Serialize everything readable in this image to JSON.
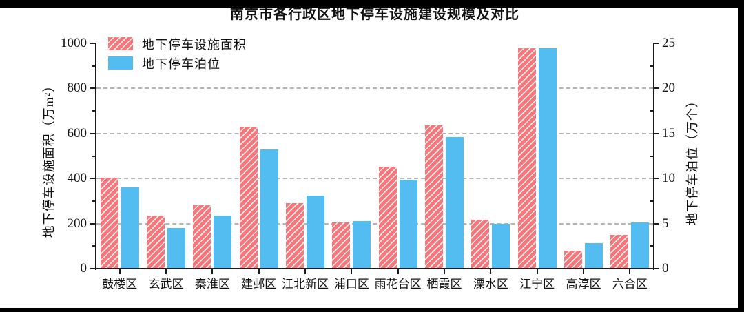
{
  "title": "南京市各行政区地下停车设施建设规模及对比",
  "legend": [
    {
      "label": "地下停车设施面积",
      "swatch": "red-hatched-patch"
    },
    {
      "label": "地下停车泊位",
      "swatch": "blue-patch"
    }
  ],
  "colors": {
    "area_bar": "#F5767B",
    "berth_bar": "#53BDF2",
    "grid": "#B4B4B4",
    "axis": "#1A1A1A",
    "letterbox": "#000000",
    "background": "#FFFFFF"
  },
  "chart_data": {
    "type": "bar",
    "title": "南京市各行政区地下停车设施建设规模及对比",
    "categories": [
      "鼓楼区",
      "玄武区",
      "秦淮区",
      "建邺区",
      "江北新区",
      "浦口区",
      "雨花台区",
      "栖霞区",
      "溧水区",
      "江宁区",
      "高淳区",
      "六合区"
    ],
    "series": [
      {
        "name": "地下停车设施面积",
        "axis": "left",
        "unit": "万m²",
        "color": "#F5767B",
        "hatch": "///",
        "values": [
          405,
          235,
          280,
          630,
          290,
          205,
          452,
          635,
          218,
          980,
          78,
          150
        ]
      },
      {
        "name": "地下停车泊位",
        "axis": "right",
        "unit": "万个",
        "color": "#53BDF2",
        "hatch": null,
        "values": [
          9.0,
          4.5,
          5.9,
          13.2,
          8.1,
          5.3,
          9.9,
          14.6,
          5.0,
          24.5,
          2.8,
          5.1
        ]
      }
    ],
    "left_axis": {
      "label": "地下停车设施面积（万m²）",
      "min": 0,
      "max": 1000,
      "ticks": [
        0,
        200,
        400,
        600,
        800,
        1000
      ],
      "minor_step": 100
    },
    "right_axis": {
      "label": "地下停车泊位（万个）",
      "min": 0,
      "max": 25,
      "ticks": [
        0,
        5,
        10,
        15,
        20,
        25
      ],
      "minor_step": 2.5
    },
    "grid": {
      "horizontal": true,
      "style": "dashed",
      "at_left_values": [
        200,
        400,
        600,
        800
      ]
    },
    "legend_position": "upper-left-inside"
  }
}
